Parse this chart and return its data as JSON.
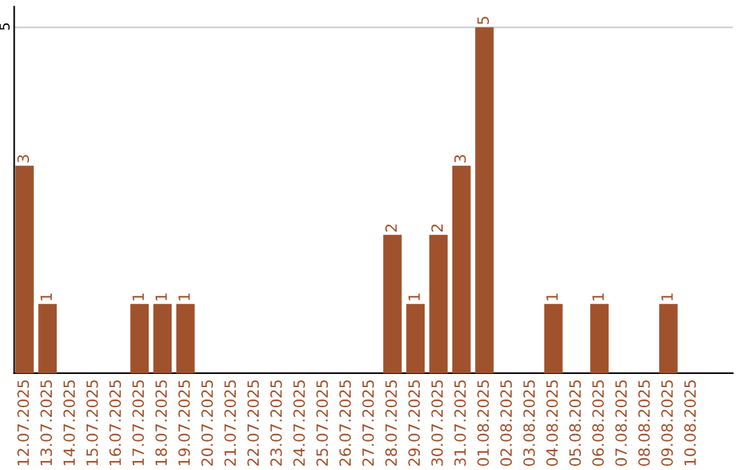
{
  "chart_data": {
    "type": "bar",
    "categories": [
      "12.07.2025",
      "13.07.2025",
      "14.07.2025",
      "15.07.2025",
      "16.07.2025",
      "17.07.2025",
      "18.07.2025",
      "19.07.2025",
      "20.07.2025",
      "21.07.2025",
      "22.07.2025",
      "23.07.2025",
      "24.07.2025",
      "25.07.2025",
      "26.07.2025",
      "27.07.2025",
      "28.07.2025",
      "29.07.2025",
      "30.07.2025",
      "31.07.2025",
      "01.08.2025",
      "02.08.2025",
      "03.08.2025",
      "04.08.2025",
      "05.08.2025",
      "06.08.2025",
      "07.08.2025",
      "08.08.2025",
      "09.08.2025",
      "10.08.2025"
    ],
    "values": [
      3,
      1,
      0,
      0,
      0,
      1,
      1,
      1,
      0,
      0,
      0,
      0,
      0,
      0,
      0,
      0,
      2,
      1,
      2,
      3,
      5,
      0,
      0,
      1,
      0,
      1,
      0,
      0,
      1,
      0
    ],
    "value_labels": [
      "3",
      "1",
      null,
      null,
      null,
      "1",
      "1",
      "1",
      null,
      null,
      null,
      null,
      null,
      null,
      null,
      null,
      "2",
      "1",
      "2",
      "3",
      "5",
      null,
      null,
      "1",
      null,
      "1",
      null,
      null,
      "1",
      null
    ],
    "color": "#a0522d",
    "ylim": [
      0,
      5.3
    ],
    "yticks": [
      5
    ],
    "grid": "y",
    "legend": false
  }
}
